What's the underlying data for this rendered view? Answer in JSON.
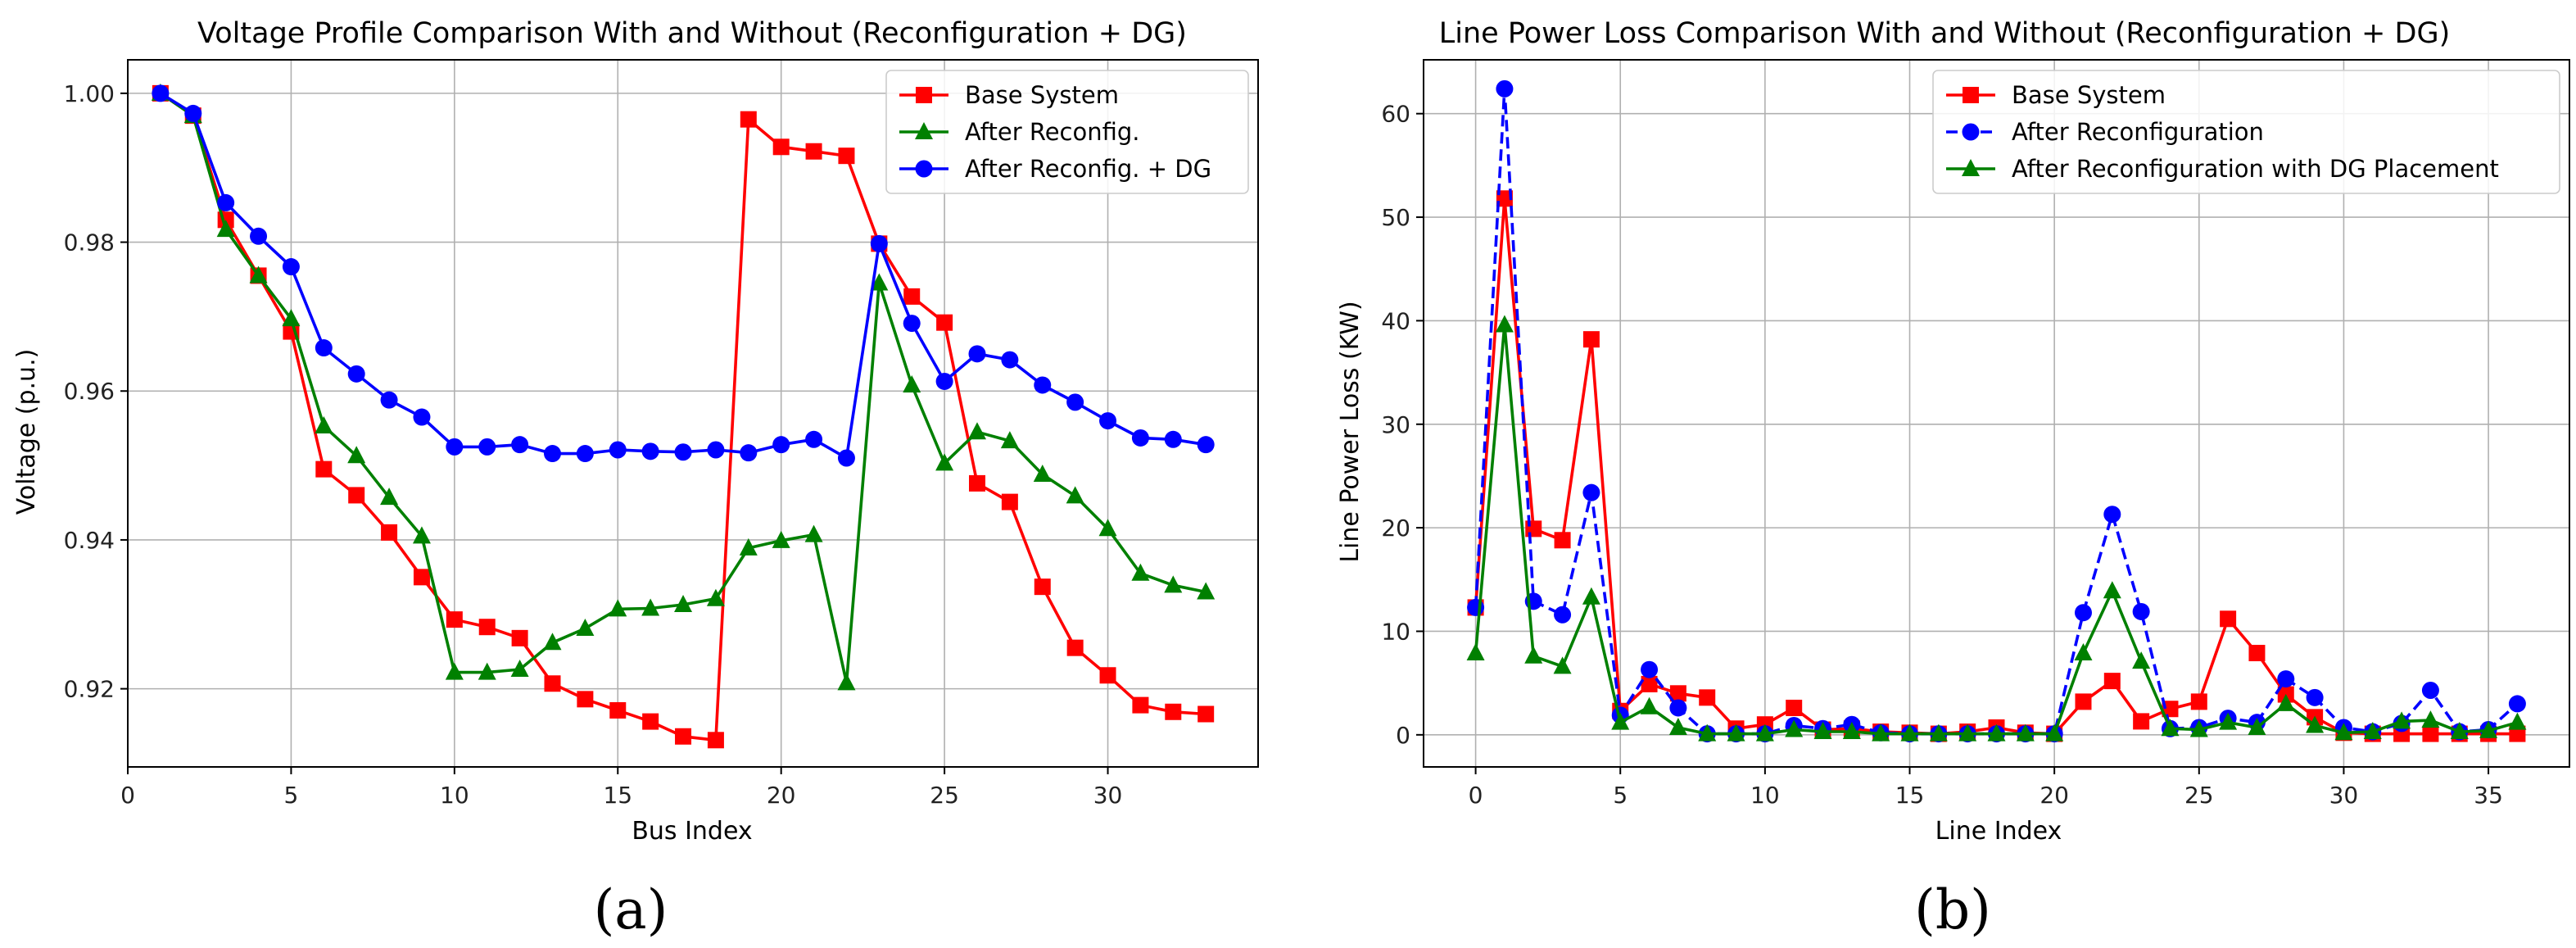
{
  "panel_labels": [
    "(a)",
    "(b)"
  ],
  "chart_data": [
    {
      "type": "line",
      "title": "Voltage Profile Comparison With and Without (Reconfiguration + DG)",
      "xlabel": "Bus Index",
      "ylabel": "Voltage (p.u.)",
      "xlim": [
        0,
        34.6
      ],
      "ylim": [
        0.9095,
        1.0045
      ],
      "xticks": [
        0,
        5,
        10,
        15,
        20,
        25,
        30
      ],
      "yticks": [
        0.92,
        0.94,
        0.96,
        0.98,
        1.0
      ],
      "ytick_labels": [
        "0.92",
        "0.94",
        "0.96",
        "0.98",
        "1.00"
      ],
      "grid": true,
      "legend_position": "top-right",
      "x": [
        1,
        2,
        3,
        4,
        5,
        6,
        7,
        8,
        9,
        10,
        11,
        12,
        13,
        14,
        15,
        16,
        17,
        18,
        19,
        20,
        21,
        22,
        23,
        24,
        25,
        26,
        27,
        28,
        29,
        30,
        31,
        32,
        33
      ],
      "series": [
        {
          "name": "Base System",
          "color": "#ff0000",
          "marker": "square",
          "dash": "solid",
          "values": [
            1.0,
            0.997,
            0.983,
            0.9755,
            0.968,
            0.9495,
            0.946,
            0.941,
            0.935,
            0.9293,
            0.9283,
            0.9268,
            0.9207,
            0.9186,
            0.9171,
            0.9156,
            0.9136,
            0.9131,
            0.9965,
            0.9928,
            0.9922,
            0.9916,
            0.9798,
            0.9727,
            0.9692,
            0.9476,
            0.9451,
            0.9337,
            0.9255,
            0.9218,
            0.9178,
            0.9169,
            0.9166
          ]
        },
        {
          "name": "After Reconfig.",
          "color": "#008000",
          "marker": "triangle",
          "dash": "solid",
          "values": [
            1.0,
            0.997,
            0.9817,
            0.9755,
            0.9697,
            0.9553,
            0.9513,
            0.9457,
            0.9405,
            0.9222,
            0.9222,
            0.9226,
            0.9262,
            0.9281,
            0.9307,
            0.9308,
            0.9313,
            0.9321,
            0.9389,
            0.9399,
            0.9407,
            0.9208,
            0.9745,
            0.9608,
            0.9503,
            0.9545,
            0.9533,
            0.9488,
            0.9459,
            0.9415,
            0.9355,
            0.9339,
            0.933
          ]
        },
        {
          "name": "After Reconfig. + DG",
          "color": "#0000ff",
          "marker": "circle",
          "dash": "solid",
          "values": [
            1.0,
            0.9973,
            0.9853,
            0.9808,
            0.9767,
            0.9658,
            0.9623,
            0.9588,
            0.9565,
            0.9525,
            0.9525,
            0.9528,
            0.9516,
            0.9516,
            0.9521,
            0.9519,
            0.9518,
            0.9521,
            0.9517,
            0.9528,
            0.9535,
            0.951,
            0.9798,
            0.9691,
            0.9613,
            0.965,
            0.9642,
            0.9608,
            0.9585,
            0.956,
            0.9537,
            0.9535,
            0.9528
          ]
        }
      ]
    },
    {
      "type": "line",
      "title": "Line Power Loss Comparison With and Without (Reconfiguration + DG)",
      "xlabel": "Line Index",
      "ylabel": "Line Power Loss (KW)",
      "xlim": [
        -1.8,
        37.8
      ],
      "ylim": [
        -3.1,
        65.2
      ],
      "xticks": [
        0,
        5,
        10,
        15,
        20,
        25,
        30,
        35
      ],
      "yticks": [
        0,
        10,
        20,
        30,
        40,
        50,
        60
      ],
      "grid": true,
      "legend_position": "top-right",
      "x": [
        0,
        1,
        2,
        3,
        4,
        5,
        6,
        7,
        8,
        9,
        10,
        11,
        12,
        13,
        14,
        15,
        16,
        17,
        18,
        19,
        20,
        21,
        22,
        23,
        24,
        25,
        26,
        27,
        28,
        29,
        30,
        31,
        32,
        33,
        34,
        35,
        36
      ],
      "series": [
        {
          "name": "Base System",
          "color": "#ff0000",
          "marker": "square",
          "dash": "solid",
          "values": [
            12.3,
            51.8,
            19.9,
            18.8,
            38.2,
            2.3,
            4.9,
            4.0,
            3.6,
            0.6,
            1.0,
            2.6,
            0.5,
            0.6,
            0.3,
            0.2,
            0.1,
            0.3,
            0.7,
            0.2,
            0.1,
            3.2,
            5.2,
            1.3,
            2.5,
            3.2,
            11.2,
            7.9,
            3.9,
            1.7,
            0.2,
            0.1,
            0.1,
            0.1,
            0.1,
            0.1,
            0.1
          ]
        },
        {
          "name": "After Reconfiguration",
          "color": "#0000ff",
          "marker": "circle",
          "dash": "dashed",
          "values": [
            12.3,
            62.4,
            12.9,
            11.6,
            23.4,
            1.9,
            6.3,
            2.6,
            0.1,
            0.1,
            0.1,
            0.9,
            0.6,
            1.0,
            0.2,
            0.1,
            0.1,
            0.1,
            0.1,
            0.1,
            0.1,
            11.8,
            21.3,
            11.9,
            0.6,
            0.7,
            1.6,
            1.2,
            5.4,
            3.6,
            0.7,
            0.3,
            1.1,
            4.3,
            0.3,
            0.5,
            3.0
          ]
        },
        {
          "name": "After Reconfiguration with DG Placement",
          "color": "#008000",
          "marker": "triangle",
          "dash": "solid",
          "values": [
            7.9,
            39.6,
            7.6,
            6.6,
            13.3,
            1.2,
            2.7,
            0.7,
            0.1,
            0.1,
            0.1,
            0.5,
            0.3,
            0.3,
            0.1,
            0.1,
            0.1,
            0.1,
            0.1,
            0.1,
            0.1,
            7.9,
            13.9,
            7.1,
            0.6,
            0.5,
            1.2,
            0.7,
            3.0,
            0.9,
            0.2,
            0.3,
            1.3,
            1.4,
            0.3,
            0.4,
            1.2
          ]
        }
      ]
    }
  ]
}
